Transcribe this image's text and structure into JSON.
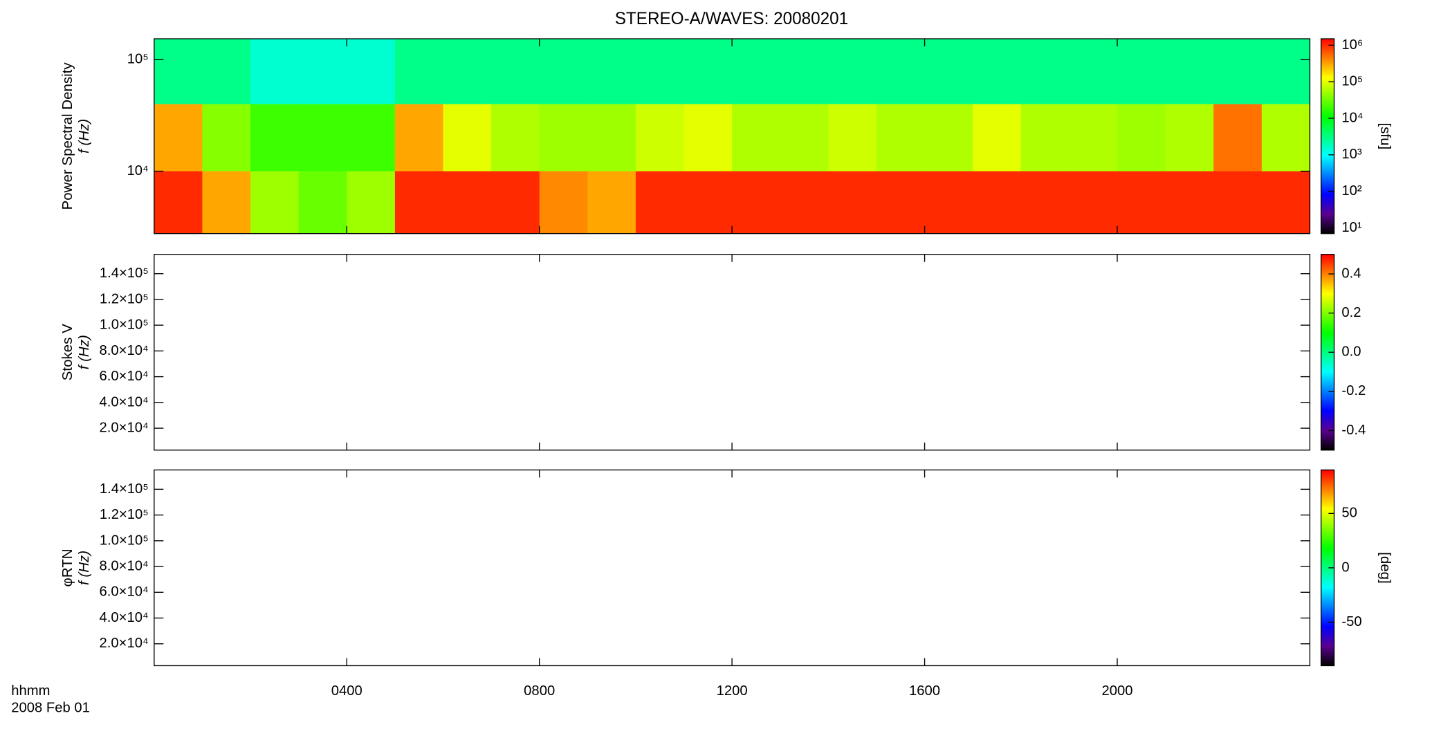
{
  "chart_data": [
    {
      "type": "heatmap",
      "title": "STEREO-A/WAVES: 20080201",
      "ylabel": "Power Spectral Density",
      "ylabel2": "f (Hz)",
      "x": [
        0,
        1,
        2,
        3,
        4,
        5,
        6,
        7,
        8,
        9,
        10,
        11,
        12,
        13,
        14,
        15,
        16,
        17,
        18,
        19,
        20,
        21,
        22,
        23,
        24
      ],
      "y": [
        2760,
        10000,
        40000,
        154000
      ],
      "z": [
        [
          1000000,
          300000,
          50000,
          30000,
          50000,
          1000000,
          1000000,
          1000000,
          400000,
          300000,
          1000000,
          1000000,
          1000000,
          1000000,
          1000000,
          1000000,
          1000000,
          1000000,
          1000000,
          1000000,
          1000000,
          1000000,
          1000000,
          1000000
        ],
        [
          300000,
          40000,
          20000,
          20000,
          20000,
          300000,
          100000,
          60000,
          50000,
          50000,
          80000,
          100000,
          60000,
          60000,
          80000,
          60000,
          60000,
          100000,
          60000,
          60000,
          50000,
          60000,
          500000,
          60000
        ],
        [
          3000,
          3000,
          1500,
          1500,
          1500,
          3000,
          3000,
          3000,
          3000,
          3000,
          3000,
          3000,
          3000,
          3000,
          3000,
          3000,
          3000,
          3000,
          3000,
          3000,
          3000,
          3000,
          3000,
          3000
        ]
      ],
      "xlim": [
        0,
        24
      ],
      "xticks": [
        {
          "value": 4,
          "label": "0400"
        },
        {
          "value": 8,
          "label": "0800"
        },
        {
          "value": 12,
          "label": "1200"
        },
        {
          "value": 16,
          "label": "1600"
        },
        {
          "value": 20,
          "label": "2000"
        }
      ],
      "ylim": [
        2760,
        154000
      ],
      "ylog": true,
      "yticks": [
        {
          "value": 10000,
          "label": "10⁴"
        },
        {
          "value": 100000,
          "label": "10⁵"
        }
      ],
      "zlim": [
        7,
        1500000
      ],
      "zlog": true,
      "zlabel": "[sfu]",
      "zticks": [
        {
          "value": 10,
          "label": "10¹"
        },
        {
          "value": 100,
          "label": "10²"
        },
        {
          "value": 1000,
          "label": "10³"
        },
        {
          "value": 10000,
          "label": "10⁴"
        },
        {
          "value": 100000,
          "label": "10⁵"
        },
        {
          "value": 1000000,
          "label": "10⁶"
        }
      ]
    },
    {
      "type": "heatmap",
      "ylabel": "Stokes V",
      "ylabel2": "f (Hz)",
      "xlim": [
        0,
        24
      ],
      "xticks": [
        {
          "value": 4,
          "label": "0400"
        },
        {
          "value": 8,
          "label": "0800"
        },
        {
          "value": 12,
          "label": "1200"
        },
        {
          "value": 16,
          "label": "1600"
        },
        {
          "value": 20,
          "label": "2000"
        }
      ],
      "ylim": [
        3000,
        155000
      ],
      "yticks": [
        {
          "value": 20000,
          "label": "2.0×10⁴"
        },
        {
          "value": 40000,
          "label": "4.0×10⁴"
        },
        {
          "value": 60000,
          "label": "6.0×10⁴"
        },
        {
          "value": 80000,
          "label": "8.0×10⁴"
        },
        {
          "value": 100000,
          "label": "1.0×10⁵"
        },
        {
          "value": 120000,
          "label": "1.2×10⁵"
        },
        {
          "value": 140000,
          "label": "1.4×10⁵"
        }
      ],
      "zlim": [
        -0.5,
        0.5
      ],
      "zticks": [
        -0.4,
        -0.2,
        {
          "value": 0,
          "label": "0.0"
        },
        0.2,
        0.4
      ]
    },
    {
      "type": "heatmap",
      "ylabel": "φRTN",
      "ylabel2": "f (Hz)",
      "xlabel": "hhmm",
      "date": "2008 Feb 01",
      "xlim": [
        0,
        24
      ],
      "xticks": [
        {
          "value": 4,
          "label": "0400"
        },
        {
          "value": 8,
          "label": "0800"
        },
        {
          "value": 12,
          "label": "1200"
        },
        {
          "value": 16,
          "label": "1600"
        },
        {
          "value": 20,
          "label": "2000"
        }
      ],
      "ylim": [
        3000,
        155000
      ],
      "yticks": [
        {
          "value": 20000,
          "label": "2.0×10⁴"
        },
        {
          "value": 40000,
          "label": "4.0×10⁴"
        },
        {
          "value": 60000,
          "label": "6.0×10⁴"
        },
        {
          "value": 80000,
          "label": "8.0×10⁴"
        },
        {
          "value": 100000,
          "label": "1.0×10⁵"
        },
        {
          "value": 120000,
          "label": "1.2×10⁵"
        },
        {
          "value": 140000,
          "label": "1.4×10⁵"
        }
      ],
      "zlim": [
        -90,
        90
      ],
      "zlabel": "[deg]",
      "zticks": [
        -50,
        0,
        50
      ]
    }
  ]
}
